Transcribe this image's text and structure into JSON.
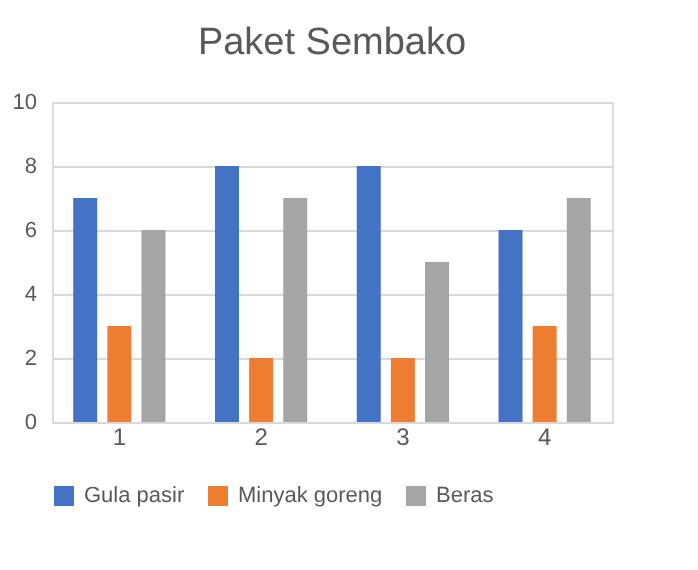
{
  "chart_data": {
    "type": "bar",
    "title": "Paket Sembako",
    "categories": [
      "1",
      "2",
      "3",
      "4"
    ],
    "series": [
      {
        "name": "Gula pasir",
        "color": "#4472c4",
        "values": [
          7,
          8,
          8,
          6
        ]
      },
      {
        "name": "Minyak goreng",
        "color": "#ed7d31",
        "values": [
          3,
          2,
          2,
          3
        ]
      },
      {
        "name": "Beras",
        "color": "#a5a5a5",
        "values": [
          6,
          7,
          5,
          7
        ]
      }
    ],
    "ylim": [
      0,
      10
    ],
    "yticks": [
      0,
      2,
      4,
      6,
      8,
      10
    ],
    "grid": "y",
    "legend": "bottom"
  }
}
